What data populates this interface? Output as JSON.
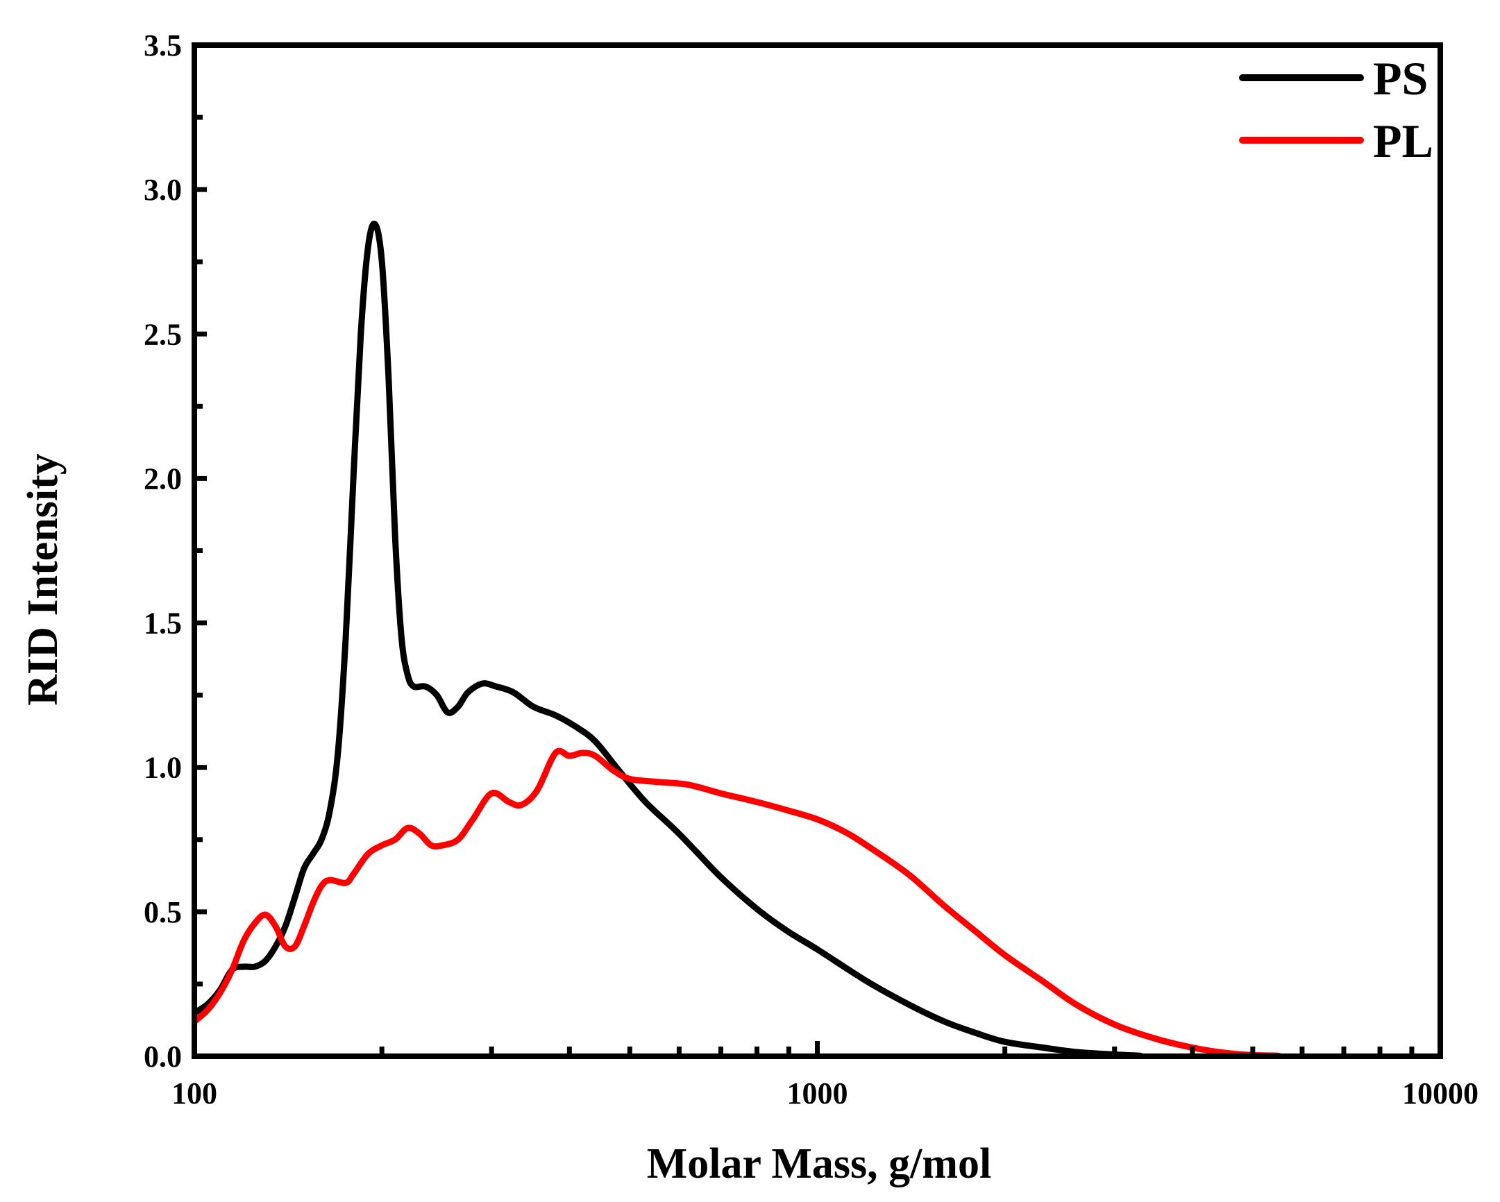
{
  "chart_data": {
    "type": "line",
    "title": "",
    "xlabel": "Molar Mass, g/mol",
    "ylabel": "RID Intensity",
    "x_scale": "log",
    "xlim": [
      100,
      10000
    ],
    "ylim": [
      0,
      3.5
    ],
    "x_ticks": [
      100,
      1000,
      10000
    ],
    "x_tick_labels": [
      "100",
      "1000",
      "10000"
    ],
    "y_ticks": [
      0,
      0.5,
      1.0,
      1.5,
      2.0,
      2.5,
      3.0,
      3.5
    ],
    "y_tick_labels": [
      "0.0",
      "0.5",
      "1.0",
      "1.5",
      "2.0",
      "2.5",
      "3.0",
      "3.5"
    ],
    "grid": false,
    "legend_position": "top-right",
    "series": [
      {
        "name": "PS",
        "color": "#000000",
        "points": [
          [
            100,
            0.15
          ],
          [
            105,
            0.18
          ],
          [
            110,
            0.23
          ],
          [
            115,
            0.3
          ],
          [
            120,
            0.31
          ],
          [
            125,
            0.31
          ],
          [
            130,
            0.33
          ],
          [
            135,
            0.38
          ],
          [
            140,
            0.45
          ],
          [
            145,
            0.55
          ],
          [
            150,
            0.65
          ],
          [
            155,
            0.7
          ],
          [
            160,
            0.75
          ],
          [
            165,
            0.85
          ],
          [
            170,
            1.05
          ],
          [
            175,
            1.45
          ],
          [
            180,
            2.0
          ],
          [
            185,
            2.5
          ],
          [
            190,
            2.8
          ],
          [
            195,
            2.88
          ],
          [
            200,
            2.75
          ],
          [
            205,
            2.35
          ],
          [
            210,
            1.8
          ],
          [
            215,
            1.45
          ],
          [
            220,
            1.32
          ],
          [
            225,
            1.28
          ],
          [
            235,
            1.28
          ],
          [
            245,
            1.25
          ],
          [
            255,
            1.19
          ],
          [
            265,
            1.21
          ],
          [
            275,
            1.26
          ],
          [
            290,
            1.29
          ],
          [
            305,
            1.28
          ],
          [
            325,
            1.26
          ],
          [
            350,
            1.21
          ],
          [
            380,
            1.18
          ],
          [
            410,
            1.14
          ],
          [
            440,
            1.09
          ],
          [
            480,
            0.99
          ],
          [
            530,
            0.88
          ],
          [
            600,
            0.77
          ],
          [
            700,
            0.62
          ],
          [
            800,
            0.51
          ],
          [
            900,
            0.43
          ],
          [
            1000,
            0.37
          ],
          [
            1200,
            0.26
          ],
          [
            1400,
            0.18
          ],
          [
            1600,
            0.12
          ],
          [
            1800,
            0.08
          ],
          [
            2000,
            0.05
          ],
          [
            2300,
            0.03
          ],
          [
            2600,
            0.015
          ],
          [
            3000,
            0.006
          ],
          [
            3300,
            0.002
          ]
        ]
      },
      {
        "name": "PL",
        "color": "#ff0000",
        "points": [
          [
            100,
            0.12
          ],
          [
            105,
            0.16
          ],
          [
            110,
            0.22
          ],
          [
            115,
            0.3
          ],
          [
            120,
            0.4
          ],
          [
            125,
            0.46
          ],
          [
            130,
            0.49
          ],
          [
            135,
            0.45
          ],
          [
            140,
            0.38
          ],
          [
            145,
            0.38
          ],
          [
            150,
            0.45
          ],
          [
            155,
            0.53
          ],
          [
            160,
            0.59
          ],
          [
            165,
            0.61
          ],
          [
            175,
            0.6
          ],
          [
            180,
            0.63
          ],
          [
            190,
            0.7
          ],
          [
            200,
            0.73
          ],
          [
            210,
            0.75
          ],
          [
            220,
            0.79
          ],
          [
            230,
            0.77
          ],
          [
            240,
            0.73
          ],
          [
            250,
            0.73
          ],
          [
            265,
            0.75
          ],
          [
            280,
            0.82
          ],
          [
            300,
            0.91
          ],
          [
            320,
            0.88
          ],
          [
            335,
            0.87
          ],
          [
            355,
            0.92
          ],
          [
            380,
            1.05
          ],
          [
            400,
            1.04
          ],
          [
            420,
            1.05
          ],
          [
            440,
            1.04
          ],
          [
            470,
            0.99
          ],
          [
            500,
            0.96
          ],
          [
            550,
            0.95
          ],
          [
            620,
            0.94
          ],
          [
            700,
            0.91
          ],
          [
            800,
            0.88
          ],
          [
            900,
            0.85
          ],
          [
            1000,
            0.82
          ],
          [
            1100,
            0.78
          ],
          [
            1200,
            0.73
          ],
          [
            1400,
            0.63
          ],
          [
            1600,
            0.52
          ],
          [
            1800,
            0.43
          ],
          [
            2000,
            0.35
          ],
          [
            2300,
            0.26
          ],
          [
            2600,
            0.18
          ],
          [
            3000,
            0.11
          ],
          [
            3500,
            0.06
          ],
          [
            4000,
            0.03
          ],
          [
            4500,
            0.012
          ],
          [
            5000,
            0.004
          ],
          [
            5500,
            0.002
          ]
        ]
      }
    ]
  }
}
